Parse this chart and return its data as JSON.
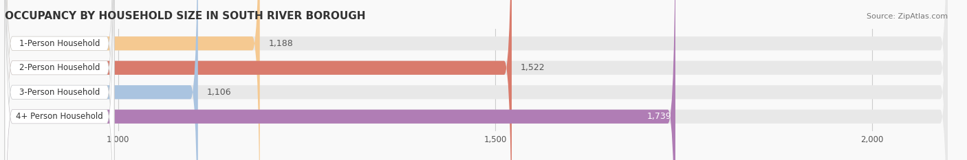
{
  "title": "OCCUPANCY BY HOUSEHOLD SIZE IN SOUTH RIVER BOROUGH",
  "source": "Source: ZipAtlas.com",
  "categories": [
    "1-Person Household",
    "2-Person Household",
    "3-Person Household",
    "4+ Person Household"
  ],
  "values": [
    1188,
    1522,
    1106,
    1739
  ],
  "bar_colors": [
    "#f5c991",
    "#d97b6c",
    "#aac4e0",
    "#b07db5"
  ],
  "bar_bg_color": "#e8e8e8",
  "label_colors": [
    "#555555",
    "#555555",
    "#555555",
    "#ffffff"
  ],
  "xlim": [
    850,
    2100
  ],
  "xticks": [
    1000,
    1500,
    2000
  ],
  "xtick_labels": [
    "1,000",
    "1,500",
    "2,000"
  ],
  "title_fontsize": 11,
  "source_fontsize": 8,
  "bar_label_fontsize": 9,
  "category_fontsize": 8.5,
  "value_labels": [
    "1,188",
    "1,522",
    "1,106",
    "1,739"
  ]
}
